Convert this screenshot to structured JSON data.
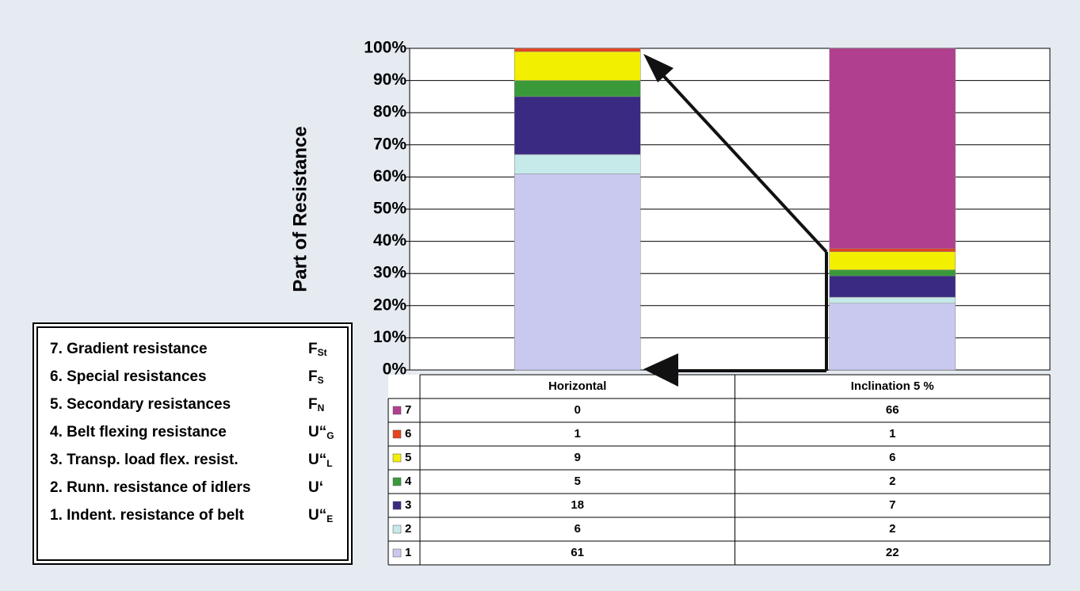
{
  "chart_data": {
    "type": "bar",
    "stacking": "percent",
    "y_label": "Part of Resistance",
    "categories": [
      "Horizontal",
      "Inclination 5 %"
    ],
    "series": [
      {
        "name": "1",
        "color": "#c9c9f0",
        "values": [
          61,
          22
        ]
      },
      {
        "name": "2",
        "color": "#c6eaea",
        "values": [
          6,
          2
        ]
      },
      {
        "name": "3",
        "color": "#3a2a82",
        "values": [
          18,
          7
        ]
      },
      {
        "name": "4",
        "color": "#3a9a3a",
        "values": [
          5,
          2
        ]
      },
      {
        "name": "5",
        "color": "#f2ef00",
        "values": [
          9,
          6
        ]
      },
      {
        "name": "6",
        "color": "#e5431f",
        "values": [
          1,
          1
        ]
      },
      {
        "name": "7",
        "color": "#b0408f",
        "values": [
          0,
          66
        ]
      }
    ],
    "ylim": [
      0,
      100
    ],
    "yticks": [
      {
        "value": 0,
        "label": "0%"
      },
      {
        "value": 10,
        "label": "10%"
      },
      {
        "value": 20,
        "label": "20%"
      },
      {
        "value": 30,
        "label": "30%"
      },
      {
        "value": 40,
        "label": "40%"
      },
      {
        "value": 50,
        "label": "50%"
      },
      {
        "value": 60,
        "label": "60%"
      },
      {
        "value": 70,
        "label": "70%"
      },
      {
        "value": 80,
        "label": "80%"
      },
      {
        "value": 90,
        "label": "90%"
      },
      {
        "value": 100,
        "label": "100%"
      }
    ],
    "grid": true,
    "resistance_key": [
      {
        "label": "7. Gradient resistance",
        "symbol": "F",
        "sub": "St"
      },
      {
        "label": "6. Special resistances",
        "symbol": "F",
        "sub": "S"
      },
      {
        "label": "5. Secondary resistances",
        "symbol": "F",
        "sub": "N"
      },
      {
        "label": "4. Belt flexing resistance",
        "symbol": "U“",
        "sub": "G"
      },
      {
        "label": "3. Transp. load flex. resist.",
        "symbol": "U“",
        "sub": "L"
      },
      {
        "label": "2. Runn. resistance of idlers",
        "symbol": "U‘"
      },
      {
        "label": "1. Indent. resistance of belt",
        "symbol": "U“",
        "sub": "E"
      }
    ]
  }
}
